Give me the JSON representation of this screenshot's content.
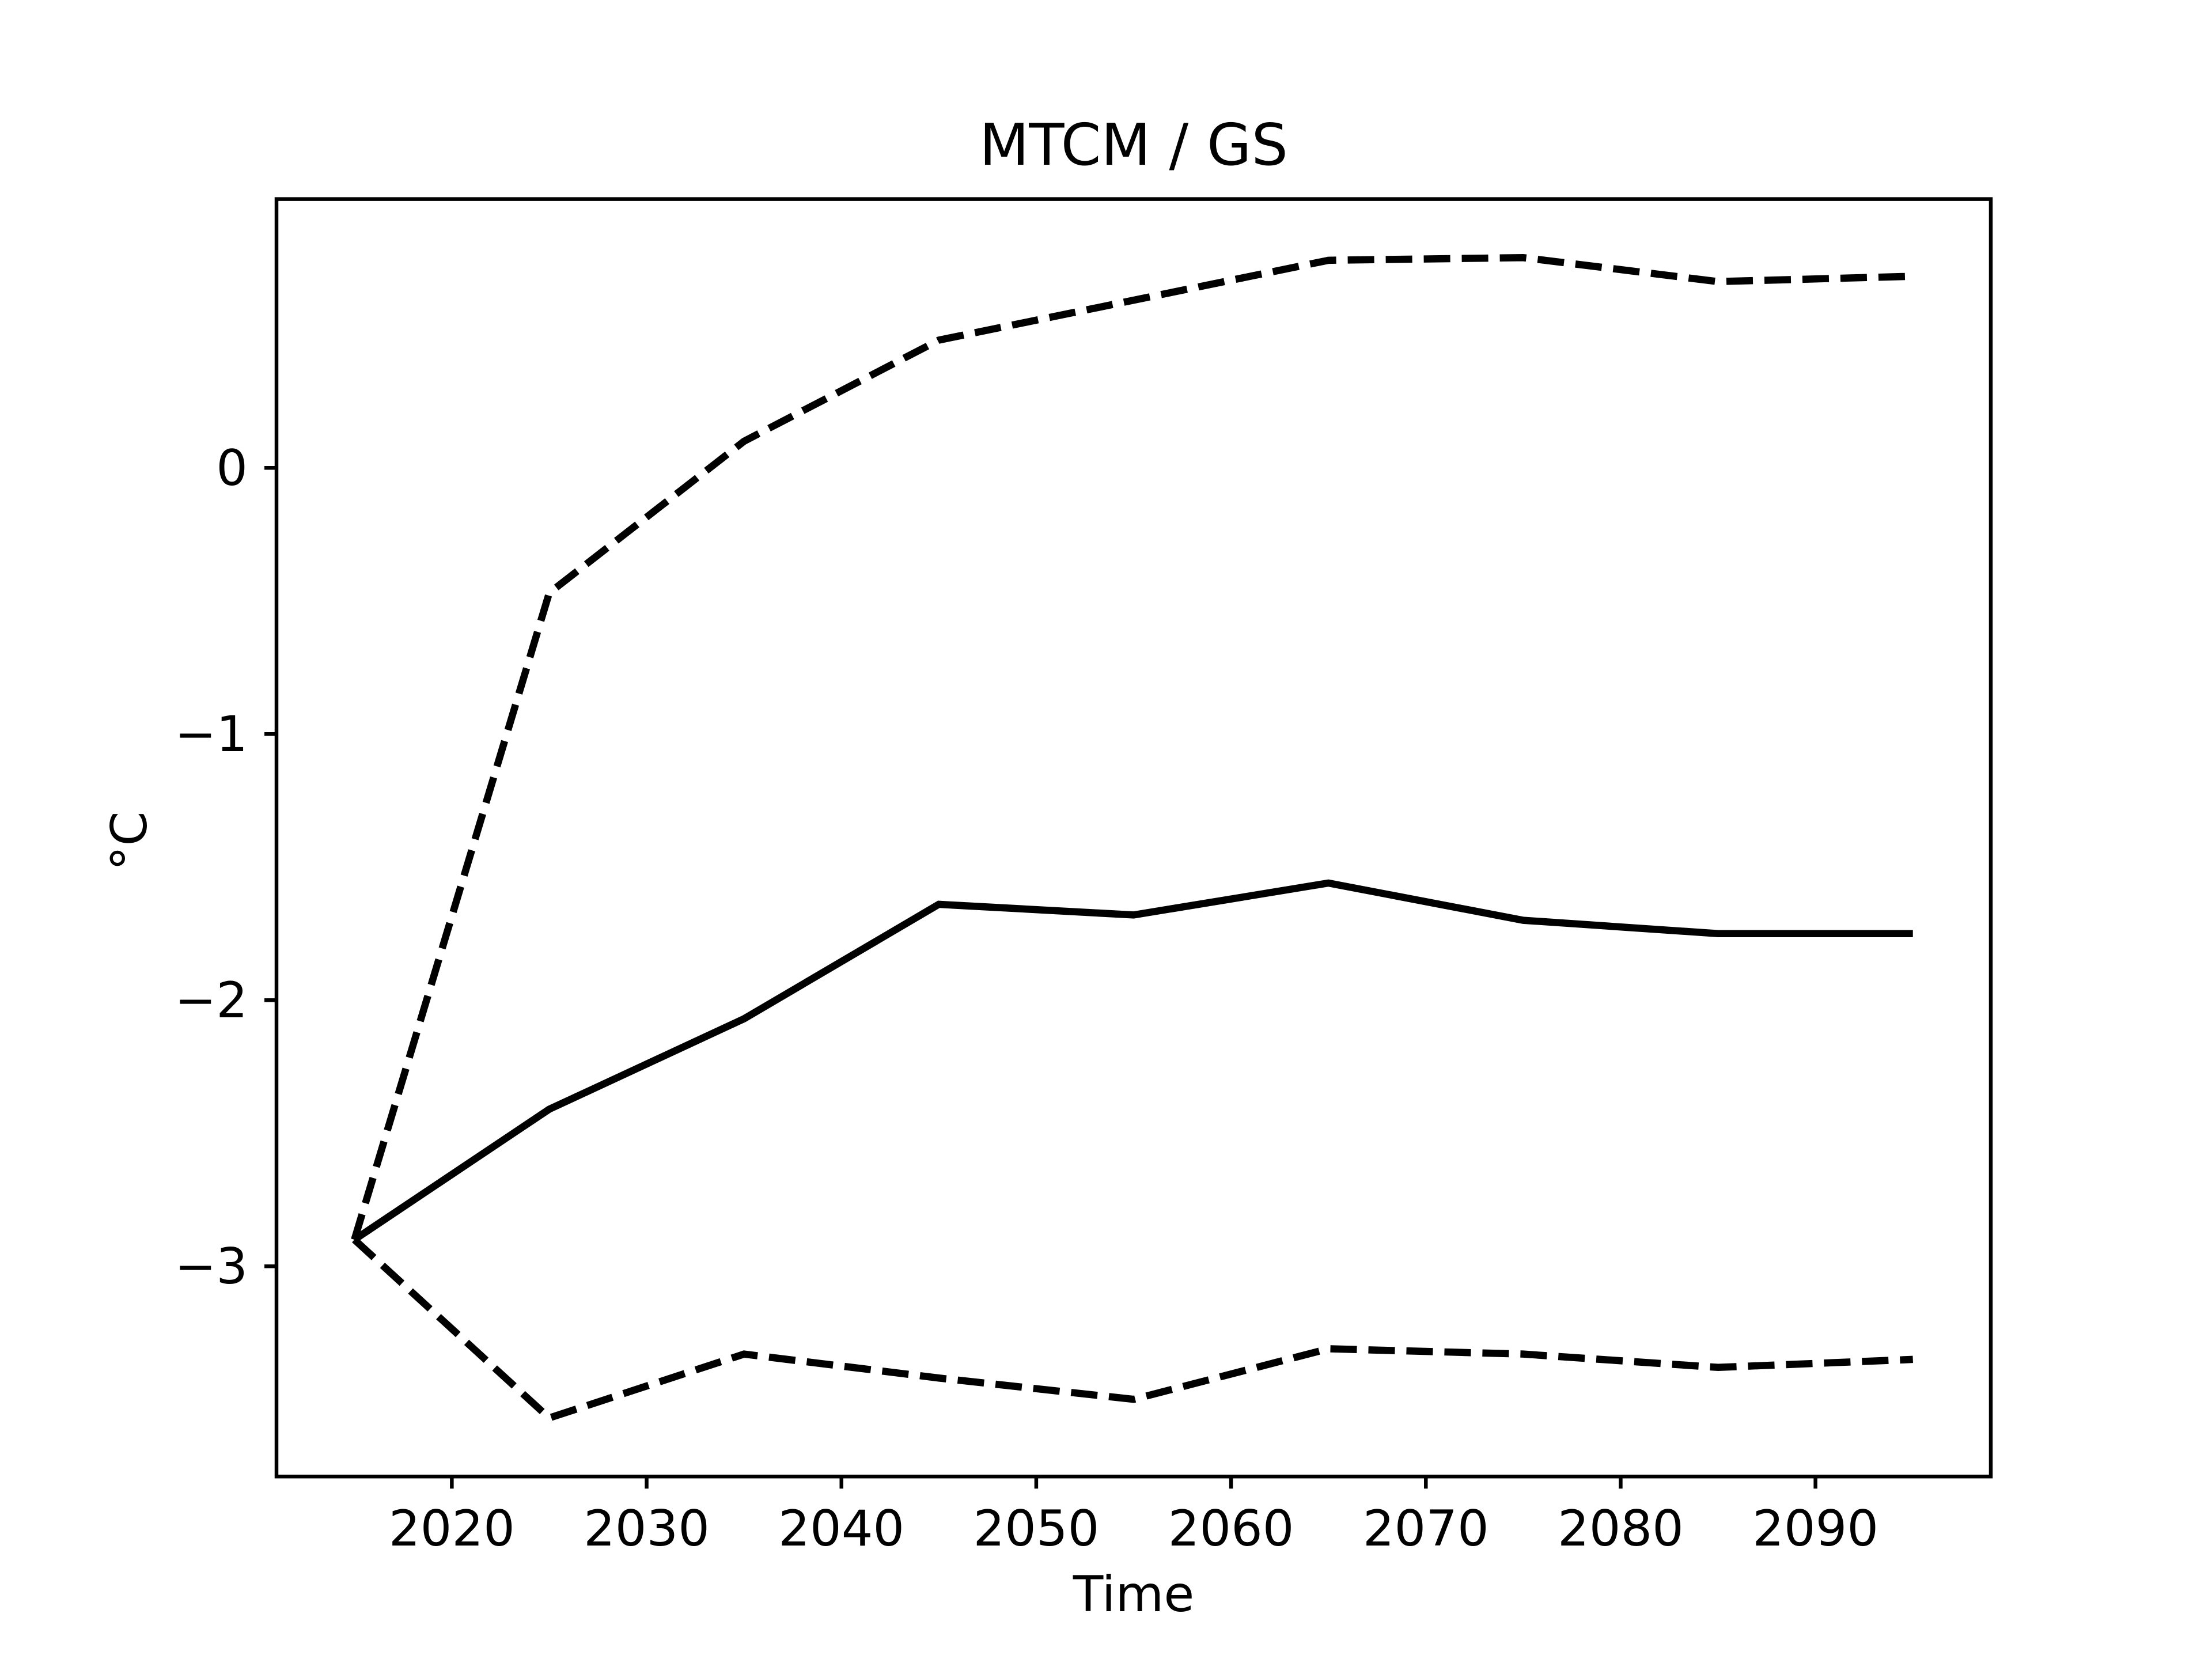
{
  "page": {
    "background": "#ffffff",
    "foreground": "#000000"
  },
  "chart_data": {
    "type": "line",
    "title": "MTCM / GS",
    "xlabel": "Time",
    "ylabel": "°C",
    "x": [
      2015,
      2025,
      2035,
      2045,
      2055,
      2065,
      2075,
      2085,
      2095
    ],
    "series": [
      {
        "name": "upper-bound",
        "style": "dashed",
        "color": "#000000",
        "values": [
          -2.9,
          -0.47,
          0.1,
          0.48,
          0.63,
          0.78,
          0.79,
          0.7,
          0.72
        ]
      },
      {
        "name": "mean",
        "style": "solid",
        "color": "#000000",
        "values": [
          -2.9,
          -2.41,
          -2.07,
          -1.64,
          -1.68,
          -1.56,
          -1.7,
          -1.75,
          -1.75
        ]
      },
      {
        "name": "lower-bound",
        "style": "dashed",
        "color": "#000000",
        "values": [
          -2.9,
          -3.57,
          -3.33,
          -3.42,
          -3.5,
          -3.31,
          -3.33,
          -3.38,
          -3.35
        ]
      }
    ],
    "xticks": [
      2020,
      2030,
      2040,
      2050,
      2060,
      2070,
      2080,
      2090
    ],
    "xtick_labels": [
      "2020",
      "2030",
      "2040",
      "2050",
      "2060",
      "2070",
      "2080",
      "2090"
    ],
    "yticks": [
      0,
      -1,
      -2,
      -3
    ],
    "ytick_labels": [
      "0",
      "−1",
      "−2",
      "−3"
    ],
    "xlim": [
      2011,
      2099
    ],
    "ylim": [
      -3.79,
      1.01
    ],
    "grid": false,
    "legend": null
  }
}
